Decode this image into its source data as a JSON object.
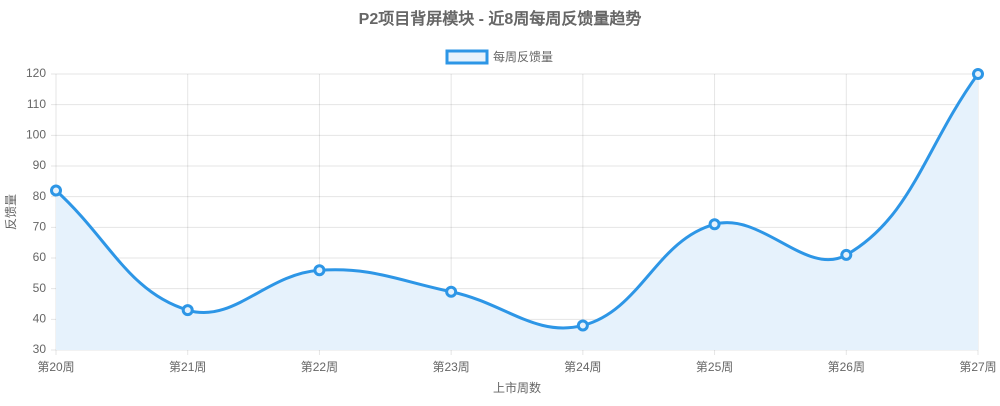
{
  "chart_data": {
    "type": "line",
    "title": "P2项目背屏模块 - 近8周每周反馈量趋势",
    "x_label": "上市周数",
    "y_label": "反馈量",
    "categories": [
      "第20周",
      "第21周",
      "第22周",
      "第23周",
      "第24周",
      "第25周",
      "第26周",
      "第27周"
    ],
    "series": [
      {
        "name": "每周反馈量",
        "color": "#2d96e6",
        "fill_color": "#e6f2fc",
        "values": [
          82,
          43,
          56,
          49,
          38,
          71,
          61,
          120
        ]
      }
    ],
    "ylim": [
      30,
      120
    ],
    "yticks": [
      30,
      40,
      50,
      60,
      70,
      80,
      90,
      100,
      110,
      120
    ],
    "grid": true,
    "smooth": true,
    "fill": true,
    "legend": "top"
  }
}
